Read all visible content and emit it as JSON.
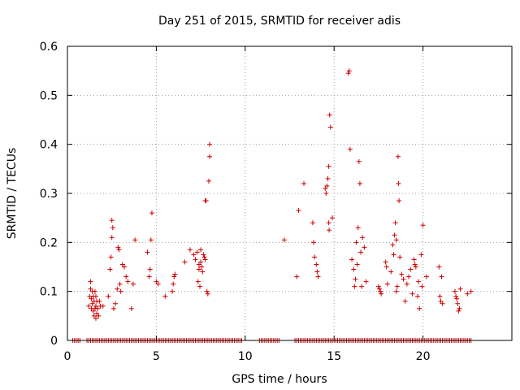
{
  "chart_data": {
    "type": "scatter",
    "title": "Day 251 of 2015, SRMTID for receiver adis",
    "xlabel": "GPS time / hours",
    "ylabel": "SRMTID / TECUs",
    "xlim": [
      0,
      25
    ],
    "ylim": [
      0,
      0.6
    ],
    "xticks": [
      0,
      5,
      10,
      15,
      20
    ],
    "yticks": [
      0,
      0.1,
      0.2,
      0.3,
      0.4,
      0.5,
      0.6
    ],
    "xtick_labels": [
      "0",
      "5",
      "10",
      "15",
      "20"
    ],
    "ytick_labels": [
      "0",
      "0.1",
      "0.2",
      "0.3",
      "0.4",
      "0.5",
      "0.6"
    ],
    "grid": true,
    "marker": "+",
    "color": "#d00000",
    "series": [
      {
        "name": "SRMTID",
        "points": [
          [
            1.2,
            0.07
          ],
          [
            1.25,
            0.09
          ],
          [
            1.3,
            0.12
          ],
          [
            1.3,
            0.105
          ],
          [
            1.35,
            0.085
          ],
          [
            1.35,
            0.065
          ],
          [
            1.4,
            0.1
          ],
          [
            1.4,
            0.075
          ],
          [
            1.45,
            0.06
          ],
          [
            1.45,
            0.09
          ],
          [
            1.5,
            0.05
          ],
          [
            1.5,
            0.08
          ],
          [
            1.55,
            0.065
          ],
          [
            1.55,
            0.1
          ],
          [
            1.6,
            0.045
          ],
          [
            1.6,
            0.07
          ],
          [
            1.6,
            0.09
          ],
          [
            1.65,
            0.055
          ],
          [
            1.65,
            0.08
          ],
          [
            1.7,
            0.065
          ],
          [
            1.75,
            0.05
          ],
          [
            1.8,
            0.08
          ],
          [
            1.85,
            0.07
          ],
          [
            2.0,
            0.07
          ],
          [
            2.3,
            0.09
          ],
          [
            2.4,
            0.145
          ],
          [
            2.45,
            0.17
          ],
          [
            2.5,
            0.21
          ],
          [
            2.5,
            0.245
          ],
          [
            2.55,
            0.23
          ],
          [
            2.6,
            0.065
          ],
          [
            2.7,
            0.075
          ],
          [
            2.8,
            0.105
          ],
          [
            2.85,
            0.19
          ],
          [
            2.9,
            0.185
          ],
          [
            2.95,
            0.115
          ],
          [
            3.0,
            0.1
          ],
          [
            3.1,
            0.155
          ],
          [
            3.2,
            0.15
          ],
          [
            3.3,
            0.13
          ],
          [
            3.4,
            0.12
          ],
          [
            3.6,
            0.065
          ],
          [
            3.7,
            0.115
          ],
          [
            3.8,
            0.205
          ],
          [
            4.5,
            0.18
          ],
          [
            4.6,
            0.13
          ],
          [
            4.65,
            0.145
          ],
          [
            4.7,
            0.205
          ],
          [
            4.75,
            0.26
          ],
          [
            5.0,
            0.12
          ],
          [
            5.1,
            0.115
          ],
          [
            5.5,
            0.09
          ],
          [
            5.9,
            0.1
          ],
          [
            5.95,
            0.115
          ],
          [
            6.0,
            0.13
          ],
          [
            6.05,
            0.135
          ],
          [
            6.6,
            0.16
          ],
          [
            6.9,
            0.185
          ],
          [
            7.1,
            0.175
          ],
          [
            7.2,
            0.165
          ],
          [
            7.3,
            0.18
          ],
          [
            7.35,
            0.12
          ],
          [
            7.4,
            0.155
          ],
          [
            7.4,
            0.145
          ],
          [
            7.45,
            0.11
          ],
          [
            7.5,
            0.185
          ],
          [
            7.5,
            0.16
          ],
          [
            7.55,
            0.15
          ],
          [
            7.6,
            0.14
          ],
          [
            7.65,
            0.175
          ],
          [
            7.7,
            0.17
          ],
          [
            7.75,
            0.165
          ],
          [
            7.75,
            0.285
          ],
          [
            7.8,
            0.285
          ],
          [
            7.85,
            0.1
          ],
          [
            7.9,
            0.095
          ],
          [
            7.95,
            0.325
          ],
          [
            8.0,
            0.375
          ],
          [
            8.0,
            0.4
          ],
          [
            12.2,
            0.205
          ],
          [
            12.9,
            0.13
          ],
          [
            13.0,
            0.265
          ],
          [
            13.3,
            0.32
          ],
          [
            13.8,
            0.24
          ],
          [
            13.85,
            0.2
          ],
          [
            13.9,
            0.17
          ],
          [
            14.0,
            0.155
          ],
          [
            14.05,
            0.14
          ],
          [
            14.1,
            0.13
          ],
          [
            14.5,
            0.31
          ],
          [
            14.55,
            0.3
          ],
          [
            14.6,
            0.315
          ],
          [
            14.65,
            0.33
          ],
          [
            14.7,
            0.355
          ],
          [
            14.7,
            0.24
          ],
          [
            14.72,
            0.225
          ],
          [
            14.75,
            0.46
          ],
          [
            14.8,
            0.435
          ],
          [
            14.9,
            0.25
          ],
          [
            15.8,
            0.545
          ],
          [
            15.85,
            0.55
          ],
          [
            15.9,
            0.39
          ],
          [
            16.0,
            0.165
          ],
          [
            16.1,
            0.145
          ],
          [
            16.15,
            0.11
          ],
          [
            16.2,
            0.125
          ],
          [
            16.25,
            0.2
          ],
          [
            16.3,
            0.155
          ],
          [
            16.35,
            0.23
          ],
          [
            16.4,
            0.365
          ],
          [
            16.45,
            0.32
          ],
          [
            16.5,
            0.18
          ],
          [
            16.55,
            0.11
          ],
          [
            16.6,
            0.21
          ],
          [
            16.7,
            0.19
          ],
          [
            16.8,
            0.12
          ],
          [
            17.5,
            0.11
          ],
          [
            17.55,
            0.105
          ],
          [
            17.6,
            0.1
          ],
          [
            17.65,
            0.095
          ],
          [
            17.9,
            0.16
          ],
          [
            17.95,
            0.15
          ],
          [
            18.0,
            0.115
          ],
          [
            18.2,
            0.14
          ],
          [
            18.3,
            0.195
          ],
          [
            18.35,
            0.175
          ],
          [
            18.4,
            0.215
          ],
          [
            18.45,
            0.24
          ],
          [
            18.5,
            0.205
          ],
          [
            18.5,
            0.1
          ],
          [
            18.55,
            0.11
          ],
          [
            18.6,
            0.375
          ],
          [
            18.62,
            0.32
          ],
          [
            18.65,
            0.285
          ],
          [
            18.7,
            0.17
          ],
          [
            18.8,
            0.135
          ],
          [
            18.9,
            0.125
          ],
          [
            19.0,
            0.08
          ],
          [
            19.1,
            0.115
          ],
          [
            19.2,
            0.13
          ],
          [
            19.3,
            0.145
          ],
          [
            19.4,
            0.095
          ],
          [
            19.5,
            0.165
          ],
          [
            19.55,
            0.155
          ],
          [
            19.6,
            0.15
          ],
          [
            19.7,
            0.09
          ],
          [
            19.75,
            0.12
          ],
          [
            19.8,
            0.065
          ],
          [
            19.9,
            0.175
          ],
          [
            19.95,
            0.11
          ],
          [
            20.0,
            0.235
          ],
          [
            20.2,
            0.13
          ],
          [
            20.9,
            0.15
          ],
          [
            20.95,
            0.09
          ],
          [
            21.0,
            0.08
          ],
          [
            21.05,
            0.13
          ],
          [
            21.1,
            0.075
          ],
          [
            21.8,
            0.1
          ],
          [
            21.85,
            0.09
          ],
          [
            21.9,
            0.085
          ],
          [
            21.95,
            0.075
          ],
          [
            22.0,
            0.06
          ],
          [
            22.05,
            0.065
          ],
          [
            22.1,
            0.105
          ],
          [
            22.5,
            0.095
          ],
          [
            22.7,
            0.1
          ]
        ],
        "zero_segments": [
          [
            0.3,
            0.75
          ],
          [
            1.1,
            9.8
          ],
          [
            10.8,
            11.9
          ],
          [
            12.8,
            22.7
          ]
        ]
      }
    ]
  }
}
